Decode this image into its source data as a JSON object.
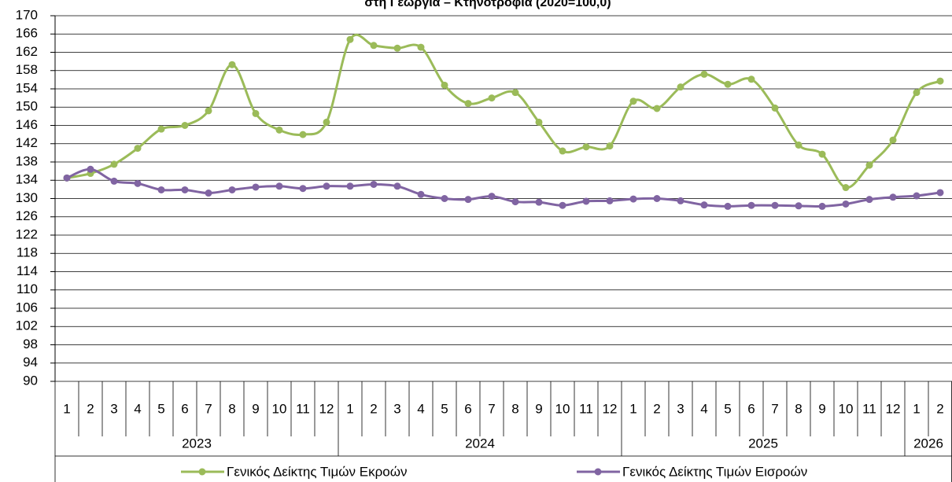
{
  "chart_data": {
    "type": "line",
    "title": "στη Γεωργία – Κτηνοτροφία (2020=100,0)",
    "category_groups": [
      {
        "label": "2023",
        "categories": [
          "1",
          "2",
          "3",
          "4",
          "5",
          "6",
          "7",
          "8",
          "9",
          "10",
          "11",
          "12"
        ]
      },
      {
        "label": "2024",
        "categories": [
          "1",
          "2",
          "3",
          "4",
          "5",
          "6",
          "7",
          "8",
          "9",
          "10",
          "11",
          "12"
        ]
      },
      {
        "label": "2025",
        "categories": [
          "1",
          "2",
          "3",
          "4",
          "5",
          "6",
          "7",
          "8",
          "9",
          "10",
          "11",
          "12"
        ]
      },
      {
        "label": "2026",
        "categories": [
          "1",
          "2"
        ]
      }
    ],
    "series": [
      {
        "name": "Γενικός Δείκτης Τιμών Εκροών",
        "color": "#9bbb59",
        "values": [
          134.5,
          135.5,
          137.5,
          141,
          145.2,
          146,
          149.2,
          159.3,
          148.6,
          145,
          144,
          146.7,
          164.8,
          163.5,
          162.9,
          163.1,
          154.8,
          150.8,
          152,
          153.2,
          146.7,
          140.4,
          141.3,
          141.5,
          151.3,
          149.7,
          154.4,
          157.2,
          155,
          156.1,
          149.8,
          141.7,
          139.7,
          132.4,
          137.3,
          142.8,
          153.2,
          155.7
        ]
      },
      {
        "name": "Γενικός Δείκτης Τιμών Εισροών",
        "color": "#8064a2",
        "values": [
          134.5,
          136.4,
          133.8,
          133.3,
          131.9,
          131.9,
          131.2,
          131.9,
          132.5,
          132.7,
          132.2,
          132.7,
          132.7,
          133.1,
          132.7,
          130.9,
          130,
          129.8,
          130.5,
          129.3,
          129.2,
          128.5,
          129.4,
          129.5,
          129.9,
          130,
          129.5,
          128.6,
          128.3,
          128.5,
          128.5,
          128.4,
          128.3,
          128.8,
          129.8,
          130.3,
          130.6,
          131.3
        ]
      }
    ],
    "ylim": [
      90,
      170
    ],
    "yticks": [
      90,
      94,
      98,
      102,
      106,
      110,
      114,
      118,
      122,
      126,
      130,
      134,
      138,
      142,
      146,
      150,
      154,
      158,
      162,
      166,
      170
    ],
    "grid": true,
    "smooth": true,
    "legend": "bottom"
  }
}
